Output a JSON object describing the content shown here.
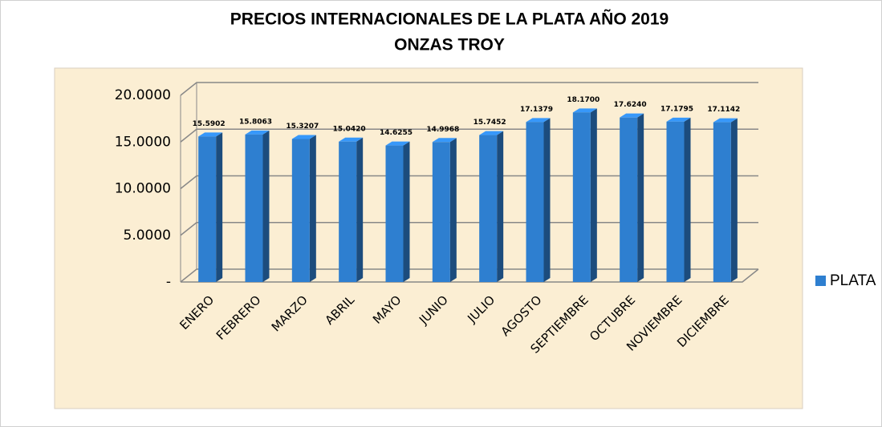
{
  "chart_data": {
    "type": "bar3d",
    "title": "PRECIOS INTERNACIONALES DE LA PLATA AÑO 2019",
    "subtitle": "ONZAS TROY",
    "categories": [
      "ENERO",
      "FEBRERO",
      "MARZO",
      "ABRIL",
      "MAYO",
      "JUNIO",
      "JULIO",
      "AGOSTO",
      "SEPTIEMBRE",
      "OCTUBRE",
      "NOVIEMBRE",
      "DICIEMBRE"
    ],
    "series": [
      {
        "name": "PLATA",
        "color": "#2e7fd0",
        "values": [
          15.5902,
          15.8063,
          15.3207,
          15.042,
          14.6255,
          14.9968,
          15.7452,
          17.1379,
          18.17,
          17.624,
          17.1795,
          17.1142
        ],
        "value_labels": [
          "15.5902",
          "15.8063",
          "15.3207",
          "15.0420",
          "14.6255",
          "14.9968",
          "15.7452",
          "17.1379",
          "18.1700",
          "17.6240",
          "17.1795",
          "17.1142"
        ]
      }
    ],
    "ylim": [
      0,
      20
    ],
    "yticks": [
      {
        "value": 0,
        "label": "-"
      },
      {
        "value": 5,
        "label": "5.0000"
      },
      {
        "value": 10,
        "label": "10.0000"
      },
      {
        "value": 15,
        "label": "15.0000"
      },
      {
        "value": 20,
        "label": "20.0000"
      }
    ],
    "grid": true,
    "legend": "right"
  }
}
